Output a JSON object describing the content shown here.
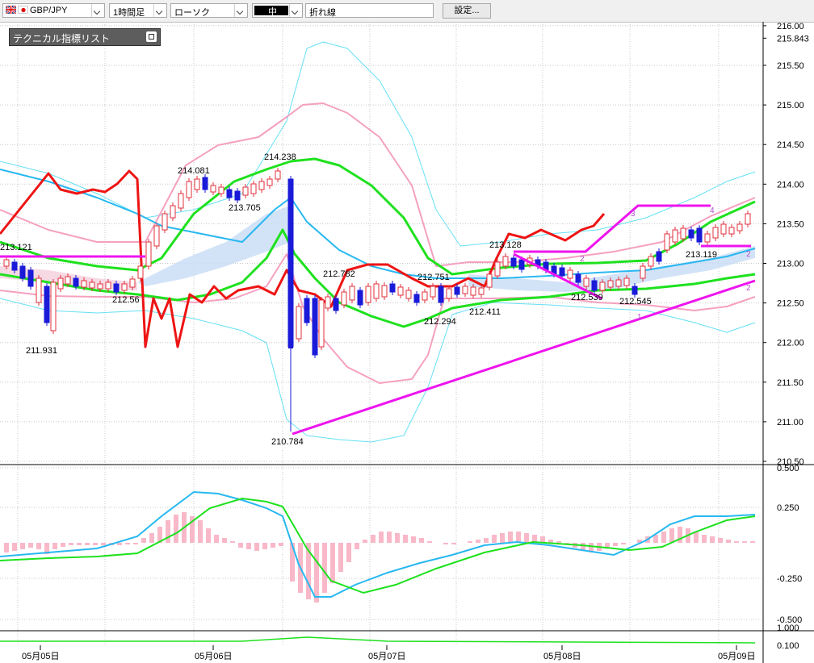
{
  "toolbar": {
    "symbol": "GBP/JPY",
    "timeframe": "1時間足",
    "chart_kind": "ローソク",
    "color_label": "中",
    "line_kind": "折れ線",
    "settings_button": "設定..."
  },
  "indicator_panel": {
    "title": "テクニカル指標リスト"
  },
  "main_axis": {
    "ticks": [
      "216.00",
      "215.843",
      "215.50",
      "215.00",
      "214.50",
      "214.00",
      "213.50",
      "213.00",
      "212.50",
      "212.00",
      "211.50",
      "211.00",
      "210.50"
    ]
  },
  "macd_axis": {
    "ticks": [
      "0.500",
      "0.250",
      "-0.250",
      "-0.500"
    ]
  },
  "sub_axis": {
    "ticks": [
      "1.000",
      "0.100"
    ]
  },
  "x_axis": {
    "ticks": [
      "05月05日",
      "05月06日",
      "05月07日",
      "05月08日",
      "05月09日"
    ]
  },
  "price_labels": [
    "213.121",
    "211.931",
    "212.56",
    "214.081",
    "213.705",
    "214.238",
    "210.784",
    "212.782",
    "212.751",
    "212.294",
    "213.128",
    "212.411",
    "212.539",
    "212.545",
    "213.119"
  ],
  "wave_labels": [
    "2",
    "1",
    "3",
    "4",
    "2",
    "2"
  ],
  "chart_data": {
    "type": "candlestick",
    "symbol": "GBP/JPY",
    "timeframe": "1時間足",
    "x_ticks": [
      "05月05日",
      "05月06日",
      "05月07日",
      "05月08日",
      "05月09日"
    ],
    "ylim": [
      210.5,
      216.0
    ],
    "annotated_prices": [
      213.121,
      211.931,
      212.56,
      214.081,
      213.705,
      214.238,
      210.784,
      212.782,
      212.751,
      212.294,
      213.128,
      212.411,
      212.539,
      212.545,
      213.119
    ],
    "macd_ylim": [
      -0.5,
      0.5
    ]
  },
  "colors": {
    "bull": "#e0303c",
    "bear": "#1a1ad8",
    "bb_outer": "#64e0f5",
    "bb_inner": "#f5a0c0",
    "ma_mid": "#28b8f0",
    "ma_green": "#1ee11e",
    "ichimoku_red": "#ee1414",
    "trendline": "#ee14ee",
    "cloud": "#c8dcf5",
    "macd_hist": "#f8b8c8"
  }
}
